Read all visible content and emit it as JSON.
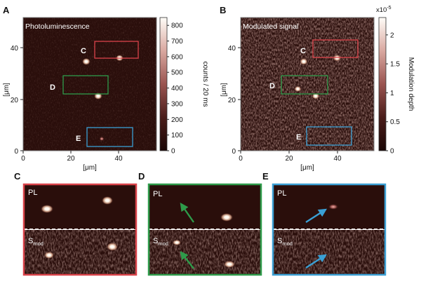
{
  "panels": {
    "A": {
      "letter": "A",
      "title": "Photoluminescence",
      "ylabel": "[μm]",
      "xlabel": "[μm]",
      "xticks": [
        "0",
        "20",
        "40"
      ],
      "yticks": [
        "0",
        "20",
        "40"
      ],
      "box_labels": [
        "C",
        "D",
        "E"
      ],
      "colorbar": {
        "label": "counts / 20 ms",
        "ticks": [
          "0",
          "100",
          "200",
          "300",
          "400",
          "500",
          "600",
          "700",
          "800"
        ],
        "range": [
          0,
          850
        ]
      },
      "spots": [
        {
          "x": 26.5,
          "y": 37.5,
          "value": 800
        },
        {
          "x": 40.5,
          "y": 39.0,
          "value": 700
        },
        {
          "x": 31.5,
          "y": 23.0,
          "value": 800
        },
        {
          "x": 33.0,
          "y": 5.0,
          "value": 250
        }
      ]
    },
    "B": {
      "letter": "B",
      "title": "Modulated signal",
      "ylabel": "[μm]",
      "xlabel": "[μm]",
      "xticks": [
        "0",
        "20",
        "40"
      ],
      "yticks": [
        "0",
        "20",
        "40"
      ],
      "box_labels": [
        "C",
        "D",
        "E"
      ],
      "colorbar": {
        "label": "Modulation depth",
        "exponent": "x10",
        "exponent_power": "-5",
        "ticks": [
          "0",
          "0.5",
          "1",
          "1.5",
          "2"
        ],
        "range": [
          0,
          2.3
        ]
      },
      "spots": [
        {
          "x": 26.5,
          "y": 37.5,
          "value": 2.0
        },
        {
          "x": 40.5,
          "y": 39.0,
          "value": 2.0
        },
        {
          "x": 31.5,
          "y": 23.0,
          "value": 1.8
        },
        {
          "x": 24.0,
          "y": 26.0,
          "value": 1.5
        }
      ]
    },
    "C": {
      "letter": "C",
      "top_label": "PL",
      "bottom_label": "S",
      "bottom_sub": "mod",
      "border": "#d9434a"
    },
    "D": {
      "letter": "D",
      "top_label": "PL",
      "bottom_label": "S",
      "bottom_sub": "mod",
      "border": "#2e9b4a",
      "arrow": "#2e9b4a"
    },
    "E": {
      "letter": "E",
      "top_label": "PL",
      "bottom_label": "S",
      "bottom_sub": "mod",
      "border": "#3a9fd4",
      "arrow": "#3a9fd4"
    }
  },
  "colors": {
    "map_background": "#2a0e0b",
    "box_C": "#d9434a",
    "box_D": "#2e9b4a",
    "box_E": "#3a9fd4"
  }
}
